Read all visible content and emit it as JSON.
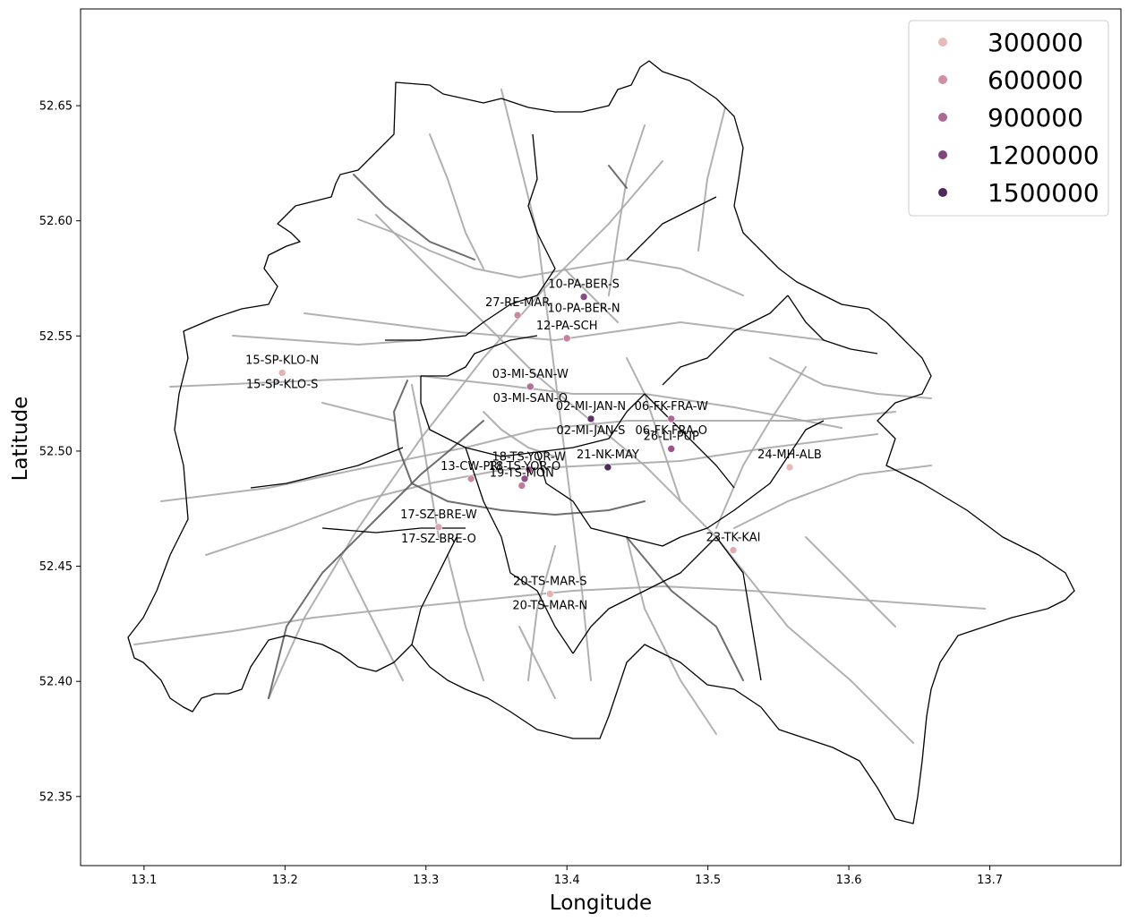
{
  "chart_data": {
    "type": "scatter",
    "title": "",
    "xlabel": "Longitude",
    "ylabel": "Latitude",
    "xlim": [
      13.055,
      13.793
    ],
    "ylim": [
      52.32,
      52.692
    ],
    "x_ticks": [
      13.1,
      13.2,
      13.3,
      13.4,
      13.5,
      13.6,
      13.7
    ],
    "x_tick_labels": [
      "13.1",
      "13.2",
      "13.3",
      "13.4",
      "13.5",
      "13.6",
      "13.7"
    ],
    "y_ticks": [
      52.35,
      52.4,
      52.45,
      52.5,
      52.55,
      52.6,
      52.65
    ],
    "y_tick_labels": [
      "52.35",
      "52.40",
      "52.45",
      "52.50",
      "52.55",
      "52.60",
      "52.65"
    ],
    "grid": false,
    "legend_position": "top-right",
    "hue": "population",
    "legend": [
      {
        "label": "300000",
        "value": 300000,
        "color": "#e8bab5"
      },
      {
        "label": "600000",
        "value": 600000,
        "color": "#d08fa5"
      },
      {
        "label": "900000",
        "value": 900000,
        "color": "#ad6797"
      },
      {
        "label": "1200000",
        "value": 1200000,
        "color": "#834580"
      },
      {
        "label": "1500000",
        "value": 1500000,
        "color": "#4e2a5a"
      }
    ],
    "points": [
      {
        "label": "10-PA-BER-S",
        "lon": 13.412,
        "lat": 52.567,
        "value": 1150000
      },
      {
        "label": "10-PA-BER-N",
        "lon": 13.412,
        "lat": 52.567,
        "value": 1150000
      },
      {
        "label": "27-RE-MAR",
        "lon": 13.365,
        "lat": 52.559,
        "value": 650000
      },
      {
        "label": "12-PA-SCH",
        "lon": 13.4,
        "lat": 52.549,
        "value": 700000
      },
      {
        "label": "15-SP-KLO-N",
        "lon": 13.198,
        "lat": 52.534,
        "value": 350000
      },
      {
        "label": "15-SP-KLO-S",
        "lon": 13.198,
        "lat": 52.534,
        "value": 350000
      },
      {
        "label": "03-MI-SAN-W",
        "lon": 13.374,
        "lat": 52.528,
        "value": 850000
      },
      {
        "label": "03-MI-SAN-O",
        "lon": 13.374,
        "lat": 52.528,
        "value": 850000
      },
      {
        "label": "02-MI-JAN-N",
        "lon": 13.417,
        "lat": 52.514,
        "value": 1400000
      },
      {
        "label": "02-MI-JAN-S",
        "lon": 13.417,
        "lat": 52.514,
        "value": 1400000
      },
      {
        "label": "06-FK-FRA-W",
        "lon": 13.474,
        "lat": 52.514,
        "value": 900000
      },
      {
        "label": "06-FK-FRA-O",
        "lon": 13.474,
        "lat": 52.514,
        "value": 900000
      },
      {
        "label": "24-MH-ALB",
        "lon": 13.558,
        "lat": 52.493,
        "value": 300000
      },
      {
        "label": "26-LI-PUP",
        "lon": 13.474,
        "lat": 52.501,
        "value": 1050000
      },
      {
        "label": "18-TS-YOR-W",
        "lon": 13.373,
        "lat": 52.492,
        "value": 950000
      },
      {
        "label": "18-TS-YOR-O",
        "lon": 13.37,
        "lat": 52.488,
        "value": 1100000
      },
      {
        "label": "21-NK-MAY",
        "lon": 13.429,
        "lat": 52.493,
        "value": 1550000
      },
      {
        "label": "13-CW-PRI",
        "lon": 13.332,
        "lat": 52.488,
        "value": 650000
      },
      {
        "label": "19-TS-MON",
        "lon": 13.368,
        "lat": 52.485,
        "value": 750000
      },
      {
        "label": "17-SZ-BRE-W",
        "lon": 13.309,
        "lat": 52.467,
        "value": 450000
      },
      {
        "label": "17-SZ-BRE-O",
        "lon": 13.309,
        "lat": 52.467,
        "value": 450000
      },
      {
        "label": "23-TK-KAI",
        "lon": 13.518,
        "lat": 52.457,
        "value": 400000
      },
      {
        "label": "20-TS-MAR-S",
        "lon": 13.388,
        "lat": 52.438,
        "value": 350000
      },
      {
        "label": "20-TS-MAR-N",
        "lon": 13.388,
        "lat": 52.438,
        "value": 350000
      }
    ]
  }
}
